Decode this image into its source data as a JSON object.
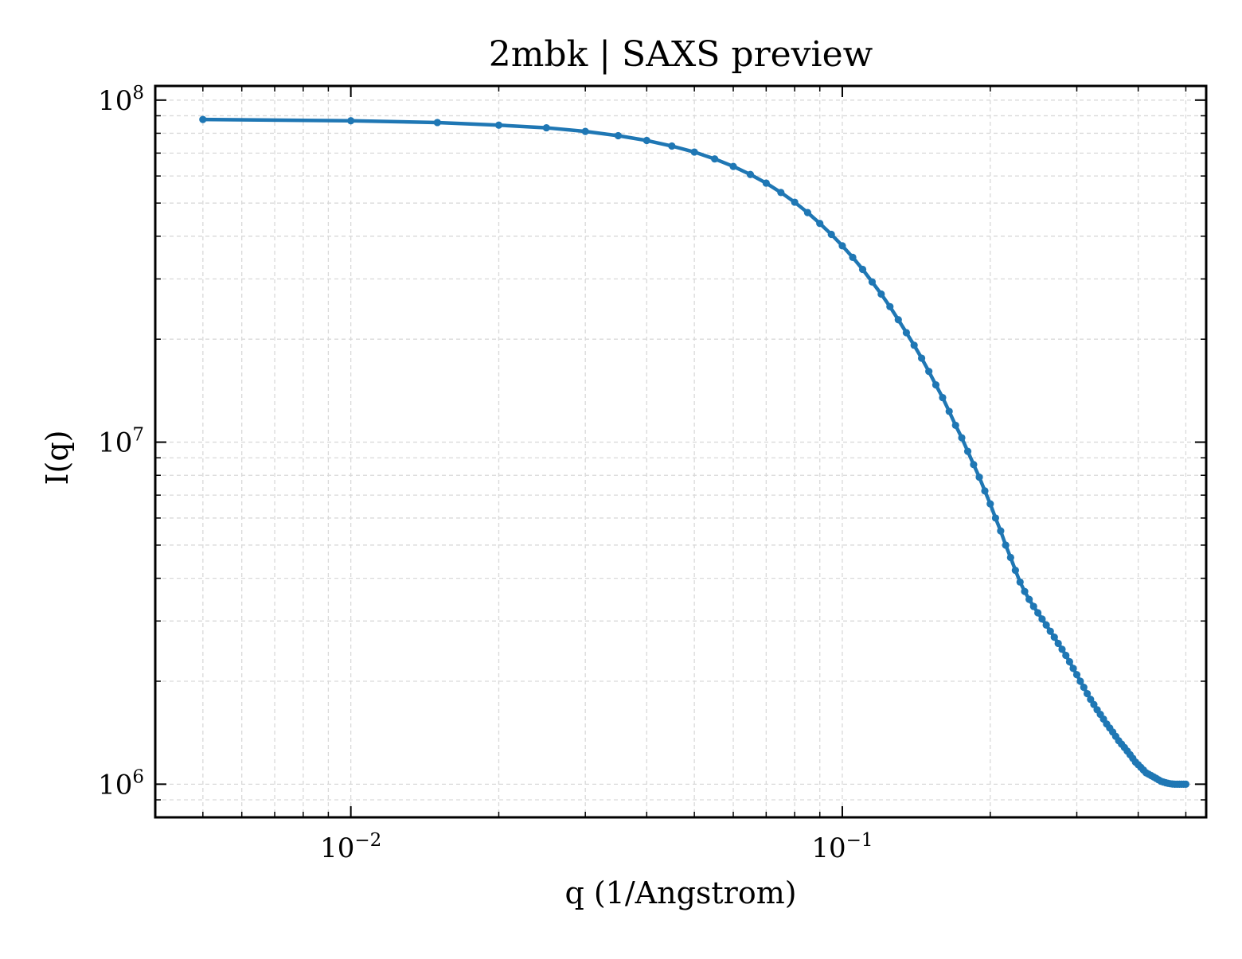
{
  "chart_data": {
    "type": "line",
    "title": "2mbk | SAXS preview",
    "xlabel": "q (1/Angstrom)",
    "ylabel": "I(q)",
    "x_scale": "log",
    "y_scale": "log",
    "xlim": [
      0.004,
      0.55
    ],
    "ylim": [
      800000,
      110000000
    ],
    "grid": true,
    "grid_style": "dashed, major and minor",
    "x_tick_labels": [
      {
        "value": 0.01,
        "base": "10",
        "exp": "−2"
      },
      {
        "value": 0.1,
        "base": "10",
        "exp": "−1"
      }
    ],
    "y_tick_labels": [
      {
        "value": 1000000,
        "base": "10",
        "exp": "6"
      },
      {
        "value": 10000000,
        "base": "10",
        "exp": "7"
      },
      {
        "value": 100000000,
        "base": "10",
        "exp": "8"
      }
    ],
    "series": [
      {
        "color": "#1f77b4",
        "marker": "dot",
        "x": [
          0.005,
          0.01,
          0.015,
          0.02,
          0.025,
          0.03,
          0.035,
          0.04,
          0.045,
          0.05,
          0.055,
          0.06,
          0.065,
          0.07,
          0.075,
          0.08,
          0.085,
          0.09,
          0.095,
          0.1,
          0.105,
          0.11,
          0.115,
          0.12,
          0.125,
          0.13,
          0.135,
          0.14,
          0.145,
          0.15,
          0.155,
          0.16,
          0.165,
          0.17,
          0.175,
          0.18,
          0.185,
          0.19,
          0.195,
          0.2,
          0.205,
          0.21,
          0.215,
          0.22,
          0.225,
          0.23,
          0.235,
          0.24,
          0.245,
          0.25,
          0.255,
          0.26,
          0.265,
          0.27,
          0.275,
          0.28,
          0.285,
          0.29,
          0.295,
          0.3,
          0.305,
          0.31,
          0.315,
          0.32,
          0.325,
          0.33,
          0.335,
          0.34,
          0.345,
          0.35,
          0.355,
          0.36,
          0.365,
          0.37,
          0.375,
          0.38,
          0.385,
          0.39,
          0.395,
          0.4,
          0.405,
          0.41,
          0.415,
          0.42,
          0.425,
          0.43,
          0.435,
          0.44,
          0.445,
          0.45,
          0.455,
          0.46,
          0.465,
          0.47,
          0.475,
          0.48,
          0.485,
          0.49,
          0.495,
          0.5
        ],
        "y": [
          87800000,
          87000000,
          86000000,
          84500000,
          83000000,
          81000000,
          78700000,
          76200000,
          73400000,
          70500000,
          67300000,
          64000000,
          60600000,
          57200000,
          53700000,
          50300000,
          46900000,
          43600000,
          40500000,
          37500000,
          34700000,
          32000000,
          29400000,
          27100000,
          24900000,
          22800000,
          20900000,
          19200000,
          17600000,
          16100000,
          14700000,
          13500000,
          12300000,
          11200000,
          10300000,
          9400000,
          8600000,
          7900000,
          7200000,
          6600000,
          6000000,
          5500000,
          5000000,
          4600000,
          4220000,
          3900000,
          3660000,
          3470000,
          3310000,
          3170000,
          3040000,
          2920000,
          2800000,
          2690000,
          2580000,
          2480000,
          2380000,
          2280000,
          2180000,
          2090000,
          2000000,
          1920000,
          1840000,
          1770000,
          1710000,
          1650000,
          1600000,
          1550000,
          1500000,
          1460000,
          1420000,
          1380000,
          1340000,
          1310000,
          1280000,
          1250000,
          1220000,
          1190000,
          1160000,
          1140000,
          1120000,
          1100000,
          1080000,
          1070000,
          1060000,
          1050000,
          1040000,
          1030000,
          1020000,
          1015000,
          1010000,
          1006000,
          1003000,
          1001000,
          1000000,
          1000000,
          1000000,
          1000000,
          1000000,
          1000000
        ]
      }
    ]
  }
}
